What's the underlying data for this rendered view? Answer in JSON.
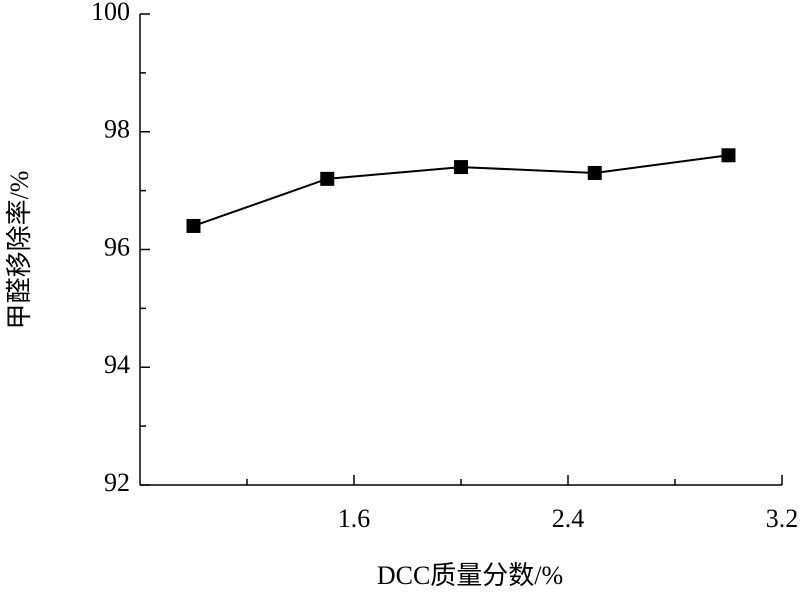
{
  "chart_data": {
    "type": "line",
    "xlabel": "DCC质量分数/%",
    "ylabel": "甲醛移除率/%",
    "x": [
      1.0,
      1.5,
      2.0,
      2.5,
      3.0
    ],
    "series": [
      {
        "color": "#000000",
        "values": [
          96.4,
          97.2,
          97.4,
          97.3,
          97.6
        ]
      }
    ],
    "xlim": [
      0.8,
      3.2
    ],
    "xticks": [
      1.6,
      2.4,
      3.2
    ],
    "xminor": [
      1.2,
      2.0,
      2.8
    ],
    "ylim": [
      92,
      100
    ],
    "yticks": [
      92,
      94,
      96,
      98,
      100
    ],
    "yminor": [
      93,
      95,
      97,
      99
    ]
  }
}
